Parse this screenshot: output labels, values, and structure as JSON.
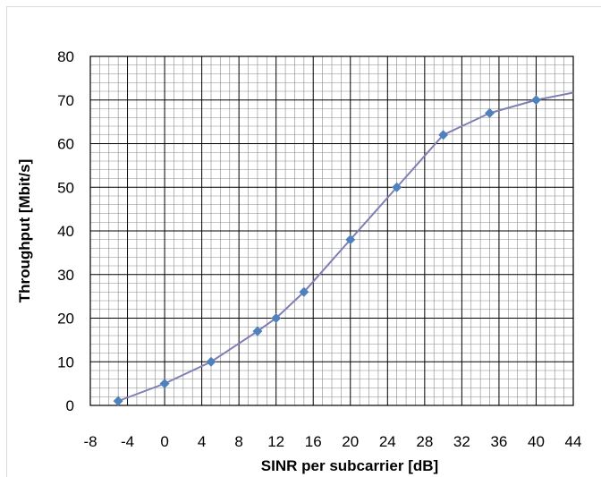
{
  "chart_data": {
    "type": "line",
    "title": "",
    "xlabel": "SINR per subcarrier [dB]",
    "ylabel": "Throughput  [Mbit/s]",
    "xlim": [
      -8,
      44
    ],
    "ylim": [
      0,
      80
    ],
    "x_major_ticks": [
      -8,
      -4,
      0,
      4,
      8,
      12,
      16,
      20,
      24,
      28,
      32,
      36,
      40,
      44
    ],
    "x_tick_labels": [
      "-8",
      "-4",
      "0",
      "4",
      "8",
      "12",
      "16",
      "20",
      "24",
      "28",
      "32",
      "36",
      "40",
      "44"
    ],
    "y_major_ticks": [
      0,
      10,
      20,
      30,
      40,
      50,
      60,
      70,
      80
    ],
    "y_tick_labels": [
      "0",
      "10",
      "20",
      "30",
      "40",
      "50",
      "60",
      "70",
      "80"
    ],
    "x_minor_step": 1,
    "y_minor_step": 2,
    "grid": true,
    "legend": "none",
    "series": [
      {
        "x": [
          -5,
          0,
          5,
          10,
          12,
          15,
          20,
          25,
          30,
          35,
          40
        ],
        "y": [
          1,
          5,
          10,
          17,
          20,
          26,
          38,
          50,
          62,
          67,
          70
        ],
        "line_end": [
          44,
          71.7
        ],
        "color": "#7f7fb5",
        "marker_color": "#4f81bd",
        "marker": "diamond"
      }
    ]
  }
}
